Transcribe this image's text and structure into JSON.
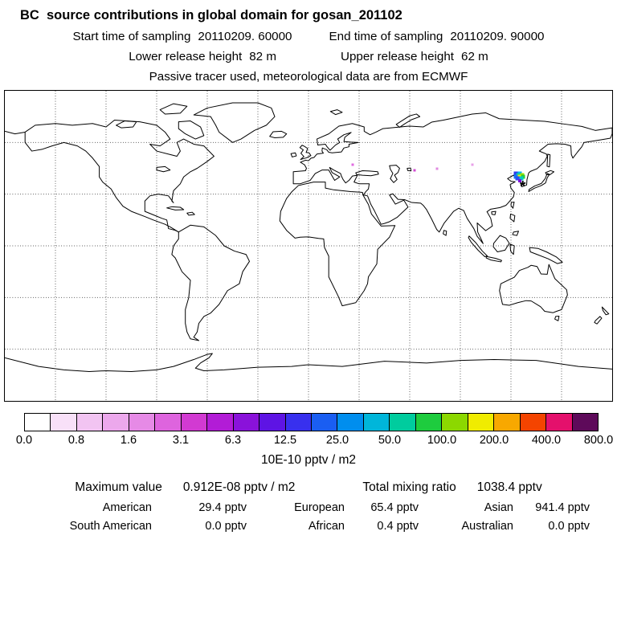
{
  "figure": {
    "title": "BC  source contributions in global domain for gosan_201102",
    "sampling": {
      "start_label": "Start time of sampling",
      "start_value": "20110209. 60000",
      "end_label": "End time of sampling",
      "end_value": "20110209. 90000"
    },
    "release": {
      "lower_label": "Lower release height",
      "lower_value": "82 m",
      "upper_label": "Upper release height",
      "upper_value": "62 m"
    },
    "tracer_note": "Passive tracer used, meteorological data are from ECMWF"
  },
  "colorbar": {
    "labels": [
      "0.0",
      "0.8",
      "1.6",
      "3.1",
      "6.3",
      "12.5",
      "25.0",
      "50.0",
      "100.0",
      "200.0",
      "400.0",
      "800.0"
    ],
    "colors": [
      "#ffffff",
      "#f8e0f8",
      "#f2c4f2",
      "#eca8ec",
      "#e68ae6",
      "#de64de",
      "#d23ad2",
      "#b21cd6",
      "#8a12da",
      "#5e14e4",
      "#3830ee",
      "#1a5ef2",
      "#008eee",
      "#00b6da",
      "#00cc9e",
      "#1ecc3e",
      "#8cd800",
      "#f0ec00",
      "#f8a800",
      "#f44400",
      "#e4106c",
      "#5e0a5a"
    ],
    "units": "10E-10 pptv / m2"
  },
  "map": {
    "graticule_deg": 30,
    "extent": {
      "lon_min": -180,
      "lon_max": 180,
      "lat_min": -90,
      "lat_max": 90
    },
    "station_marker": {
      "symbol": "*",
      "lon": 127,
      "lat": 36
    },
    "cells": [
      {
        "lon": 123,
        "lat": 42,
        "color": "#2a3cf0"
      },
      {
        "lon": 125,
        "lat": 42,
        "color": "#00b4f0"
      },
      {
        "lon": 124.5,
        "lat": 41,
        "color": "#00d0a0"
      },
      {
        "lon": 126.5,
        "lat": 41,
        "color": "#9ce000"
      },
      {
        "lon": 123,
        "lat": 40,
        "color": "#1478f2"
      },
      {
        "lon": 125,
        "lat": 40,
        "color": "#f0ec00"
      },
      {
        "lon": 127,
        "lat": 40,
        "color": "#2ecc2e"
      },
      {
        "lon": 124,
        "lat": 39,
        "color": "#2a4cf4"
      },
      {
        "lon": 126,
        "lat": 39,
        "color": "#00ccc4"
      },
      {
        "lon": 125,
        "lat": 38,
        "color": "#7c12d8",
        "size": 4
      },
      {
        "lon": 26,
        "lat": 47,
        "color": "#e06ae0",
        "size": 3
      },
      {
        "lon": 63,
        "lat": 44,
        "color": "#d24ad2",
        "size": 3
      },
      {
        "lon": 76,
        "lat": 45,
        "color": "#e08ae0",
        "size": 3
      },
      {
        "lon": 97,
        "lat": 47,
        "color": "#e8a0e8",
        "size": 3
      }
    ]
  },
  "stats": {
    "max_label": "Maximum value",
    "max_value": "0.912E-08 pptv / m2",
    "total_label": "Total mixing ratio",
    "total_value": "1038.4 pptv",
    "regions": [
      {
        "name": "American",
        "value": "29.4 pptv"
      },
      {
        "name": "European",
        "value": "65.4 pptv"
      },
      {
        "name": "Asian",
        "value": "941.4 pptv"
      },
      {
        "name": "South American",
        "value": "0.0 pptv"
      },
      {
        "name": "African",
        "value": "0.4 pptv"
      },
      {
        "name": "Australian",
        "value": "0.0 pptv"
      }
    ]
  },
  "chart_data": {
    "type": "heatmap",
    "title": "BC source contributions in global domain for gosan_201102",
    "projection": "equirectangular world map, lon -180..180, lat -90..90, 30 degree dotted graticule",
    "colorbar_levels": [
      0.0,
      0.8,
      1.6,
      3.1,
      6.3,
      12.5,
      25.0,
      50.0,
      100.0,
      200.0,
      400.0,
      800.0
    ],
    "colorbar_units": "10E-10 pptv / m2",
    "station": {
      "name": "gosan_201102",
      "marker_lon": 127,
      "marker_lat": 36
    },
    "hotspot_description": "strong source-contribution cluster over NE China / Korean peninsula near 125E 40N; faint isolated cells over eastern Europe and central Asia",
    "maximum_value": "0.912E-08 pptv / m2",
    "total_mixing_ratio_pptv": 1038.4,
    "regional_contributions_pptv": {
      "American": 29.4,
      "European": 65.4,
      "Asian": 941.4,
      "South American": 0.0,
      "African": 0.4,
      "Australian": 0.0
    }
  }
}
